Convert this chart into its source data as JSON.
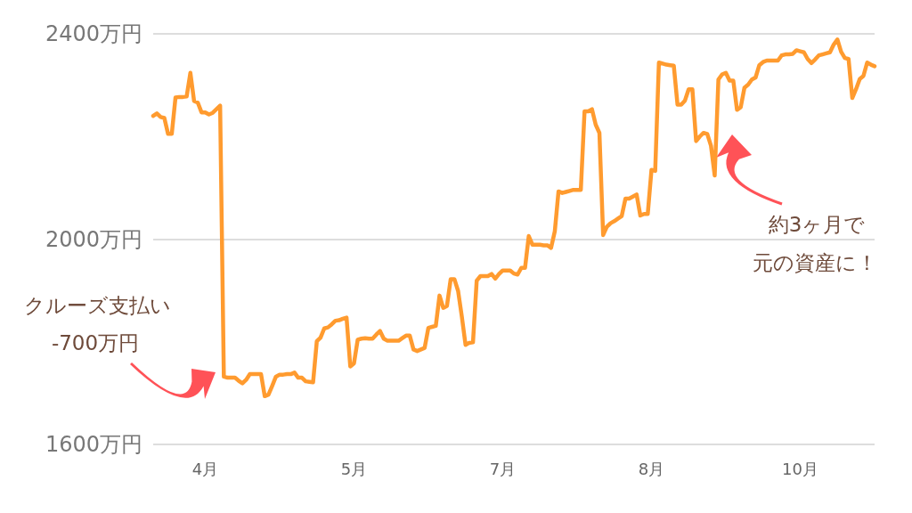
{
  "chart_data": {
    "type": "line",
    "color": "#ff9b2f",
    "categories": [
      null,
      null,
      null,
      null,
      null,
      null,
      null,
      null,
      null,
      null,
      null,
      null,
      null,
      null,
      "4月",
      null,
      null,
      null,
      null,
      null,
      null,
      null,
      null,
      null,
      null,
      null,
      null,
      null,
      null,
      null,
      null,
      null,
      null,
      null,
      null,
      null,
      null,
      null,
      null,
      null,
      null,
      null,
      null,
      null,
      null,
      null,
      null,
      null,
      null,
      null,
      null,
      null,
      null,
      null,
      "5月",
      null,
      null,
      null,
      null,
      null,
      null,
      null,
      null,
      null,
      null,
      null,
      null,
      null,
      null,
      null,
      null,
      null,
      null,
      null,
      null,
      null,
      null,
      null,
      null,
      null,
      null,
      null,
      null,
      null,
      null,
      null,
      null,
      null,
      null,
      null,
      null,
      null,
      null,
      null,
      "7月",
      null,
      null,
      null,
      null,
      null,
      null,
      null,
      null,
      null,
      null,
      null,
      null,
      null,
      null,
      null,
      null,
      null,
      null,
      null,
      null,
      null,
      null,
      null,
      null,
      null,
      null,
      null,
      null,
      null,
      null,
      null,
      null,
      null,
      null,
      null,
      null,
      null,
      null,
      null,
      "8月",
      null,
      null,
      null,
      null,
      null,
      null,
      null,
      null,
      null,
      null,
      null,
      null,
      null,
      null,
      null,
      null,
      null,
      null,
      null,
      null,
      null,
      null,
      null,
      null,
      null,
      null,
      null,
      null,
      null,
      null,
      null,
      null,
      null,
      null,
      null,
      null,
      null,
      null,
      null,
      "10月",
      null,
      null,
      null,
      null,
      null,
      null,
      null,
      null,
      null,
      null,
      null,
      null,
      null,
      null,
      null,
      null,
      null,
      null,
      null,
      null
    ],
    "values": [
      2240,
      2245,
      2238,
      2236,
      2205,
      2205,
      2276,
      2277,
      2277,
      2278,
      2324,
      2269,
      2266,
      2247,
      2247,
      2243,
      2246,
      2253,
      2260,
      1732,
      1730,
      1730,
      1730,
      1724,
      1719,
      1726,
      1737,
      1737,
      1737,
      1737,
      1694,
      1697,
      1714,
      1732,
      1736,
      1736,
      1737,
      1737,
      1740,
      1730,
      1730,
      1723,
      1722,
      1721,
      1801,
      1808,
      1826,
      1828,
      1834,
      1841,
      1842,
      1845,
      1847,
      1752,
      1758,
      1804,
      1806,
      1807,
      1806,
      1806,
      1814,
      1821,
      1806,
      1802,
      1802,
      1802,
      1802,
      1807,
      1812,
      1812,
      1785,
      1782,
      1785,
      1788,
      1827,
      1829,
      1831,
      1890,
      1866,
      1870,
      1922,
      1922,
      1899,
      1849,
      1794,
      1798,
      1799,
      1919,
      1928,
      1928,
      1928,
      1932,
      1923,
      1932,
      1939,
      1939,
      1939,
      1933,
      1931,
      1944,
      1944,
      2006,
      1989,
      1989,
      1989,
      1988,
      1988,
      1983,
      2015,
      2093,
      2090,
      2092,
      2094,
      2096,
      2096,
      2096,
      2249,
      2249,
      2253,
      2223,
      2207,
      2008,
      2024,
      2031,
      2035,
      2040,
      2045,
      2079,
      2079,
      2083,
      2087,
      2046,
      2049,
      2049,
      2135,
      2133,
      2344,
      2342,
      2340,
      2339,
      2338,
      2262,
      2262,
      2270,
      2292,
      2292,
      2191,
      2200,
      2207,
      2205,
      2182,
      2124,
      2311,
      2321,
      2324,
      2309,
      2309,
      2252,
      2257,
      2295,
      2301,
      2311,
      2315,
      2339,
      2345,
      2348,
      2348,
      2348,
      2348,
      2358,
      2360,
      2360,
      2361,
      2368,
      2366,
      2364,
      2351,
      2343,
      2350,
      2358,
      2360,
      2362,
      2364,
      2379,
      2389,
      2365,
      2353,
      2351,
      2275,
      2292,
      2312,
      2318,
      2344,
      2340,
      2337
    ],
    "ylim": [
      1600,
      2400
    ],
    "yticks": [
      {
        "value": 1600,
        "label": "1600万円"
      },
      {
        "value": 2000,
        "label": "2000万円"
      },
      {
        "value": 2400,
        "label": "2400万円"
      }
    ],
    "grid": "y",
    "annotations": [
      "クルーズ支払い",
      "-700万円",
      "約3ヶ月で",
      "元の資産に！"
    ]
  }
}
